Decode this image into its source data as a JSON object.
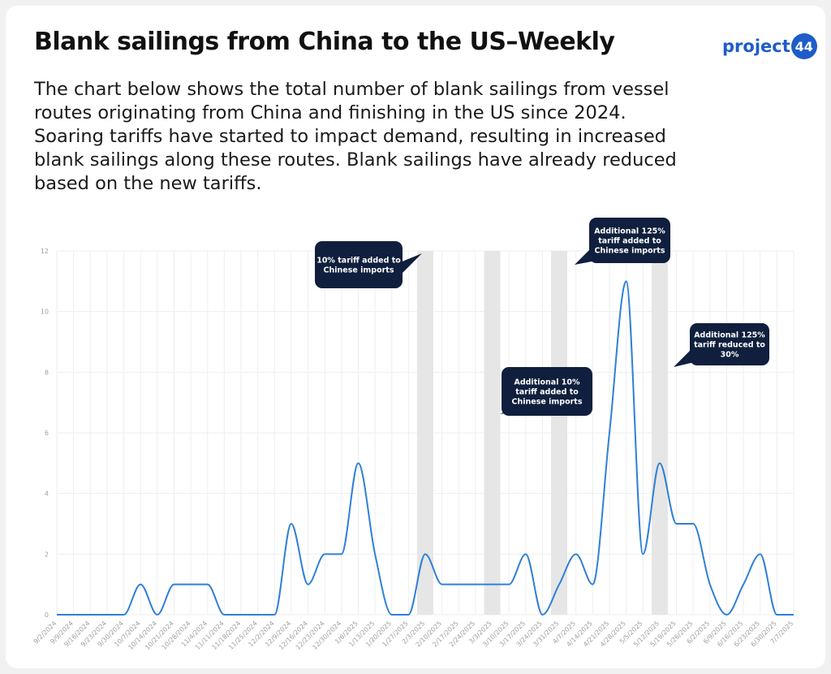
{
  "header": {
    "title": "Blank sailings from China to the US–Weekly",
    "logo_text": "project",
    "logo_badge": "44",
    "description": "The chart below shows the total number of blank sailings from vessel routes originating from China and finishing in the US since 2024. Soaring tariffs have started to impact demand, resulting in increased blank sailings along these routes. Blank sailings have already reduced based on the new tariffs."
  },
  "colors": {
    "line": "#2f80d8",
    "callout": "#0f1f3d",
    "band": "#e6e6e6",
    "grid": "#eeeeee",
    "brand": "#1e5cc8"
  },
  "chart_data": {
    "type": "line",
    "title": "Blank sailings from China to the US–Weekly",
    "xlabel": "",
    "ylabel": "",
    "ylim": [
      0,
      12
    ],
    "yticks": [
      0,
      2,
      4,
      6,
      8,
      10,
      12
    ],
    "grid": true,
    "categories": [
      "9/2/2024",
      "9/9/2024",
      "9/16/2024",
      "9/23/2024",
      "9/30/2024",
      "10/7/2024",
      "10/14/2024",
      "10/21/2024",
      "10/28/2024",
      "11/4/2024",
      "11/11/2024",
      "11/18/2024",
      "11/25/2024",
      "12/2/2024",
      "12/9/2024",
      "12/16/2024",
      "12/23/2024",
      "12/30/2024",
      "1/6/2025",
      "1/13/2025",
      "1/20/2025",
      "1/27/2025",
      "2/3/2025",
      "2/10/2025",
      "2/17/2025",
      "2/24/2025",
      "3/3/2025",
      "3/10/2025",
      "3/17/2025",
      "3/24/2025",
      "3/31/2025",
      "4/7/2025",
      "4/14/2025",
      "4/21/2025",
      "4/28/2025",
      "5/5/2025",
      "5/12/2025",
      "5/19/2025",
      "5/26/2025",
      "6/2/2025",
      "6/9/2025",
      "6/16/2025",
      "6/23/2025",
      "6/30/2025",
      "7/7/2025"
    ],
    "series": [
      {
        "values": [
          0,
          0,
          0,
          0,
          0,
          1,
          0,
          1,
          1,
          1,
          0,
          0,
          0,
          0,
          3,
          1,
          2,
          2,
          5,
          2,
          0,
          0,
          2,
          1,
          1,
          1,
          1,
          1,
          2,
          0,
          1,
          2,
          1,
          6,
          11,
          2,
          5,
          3,
          3,
          1,
          0,
          1,
          2,
          0,
          0
        ]
      }
    ],
    "highlight_weeks": [
      "2/3/2025",
      "3/3/2025",
      "3/31/2025",
      "5/12/2025"
    ],
    "annotations": [
      {
        "text": [
          "10% tariff added to",
          "Chinese imports"
        ]
      },
      {
        "text": [
          "Additional 10%",
          "tariff added to",
          "Chinese imports"
        ]
      },
      {
        "text": [
          "Additional 125%",
          "tariff added to",
          "Chinese imports"
        ]
      },
      {
        "text": [
          "Additional 125%",
          "tariff reduced to",
          "30%"
        ]
      }
    ]
  }
}
